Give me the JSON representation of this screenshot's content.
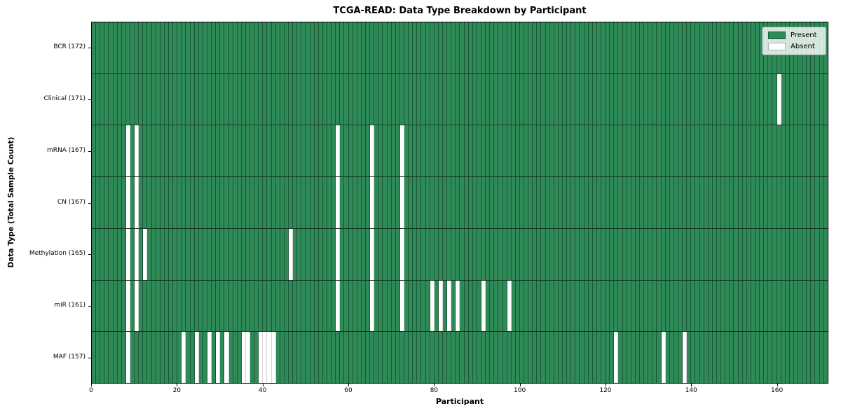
{
  "figure": {
    "title": "TCGA-READ: Data Type Breakdown by Participant",
    "xlabel": "Participant",
    "ylabel": "Data Type (Total Sample Count)"
  },
  "legend": {
    "items": [
      {
        "label": "Present",
        "color": "#2e8b57"
      },
      {
        "label": "Absent",
        "color": "#ffffff"
      }
    ]
  },
  "chart_data": {
    "type": "heatmap",
    "title": "TCGA-READ: Data Type Breakdown by Participant",
    "xlabel": "Participant",
    "ylabel": "Data Type (Total Sample Count)",
    "n_participants": 172,
    "x_ticks": [
      0,
      20,
      40,
      60,
      80,
      100,
      120,
      140,
      160
    ],
    "x_range": [
      0,
      172
    ],
    "grid": "cell-edges",
    "legend_position": "upper right",
    "colors": {
      "present": "#2e8b57",
      "absent": "#ffffff"
    },
    "cell_states": [
      "present",
      "absent"
    ],
    "rows": [
      {
        "label": "BCR (172)",
        "name": "BCR",
        "total_sample_count": 172,
        "absent_participants": []
      },
      {
        "label": "Clinical (171)",
        "name": "Clinical",
        "total_sample_count": 171,
        "absent_participants": [
          160
        ]
      },
      {
        "label": "mRNA (167)",
        "name": "mRNA",
        "total_sample_count": 167,
        "absent_participants": [
          8,
          10,
          57,
          65,
          72
        ]
      },
      {
        "label": "CN (167)",
        "name": "CN",
        "total_sample_count": 167,
        "absent_participants": [
          8,
          10,
          57,
          65,
          72
        ]
      },
      {
        "label": "Methylation (165)",
        "name": "Methylation",
        "total_sample_count": 165,
        "absent_participants": [
          8,
          10,
          12,
          46,
          57,
          65,
          72
        ]
      },
      {
        "label": "miR (161)",
        "name": "miR",
        "total_sample_count": 161,
        "absent_participants": [
          8,
          10,
          57,
          65,
          72,
          79,
          81,
          83,
          85,
          91,
          97
        ]
      },
      {
        "label": "MAF (157)",
        "name": "MAF",
        "total_sample_count": 157,
        "absent_participants": [
          8,
          21,
          24,
          27,
          29,
          31,
          35,
          36,
          39,
          40,
          41,
          42,
          122,
          133,
          138
        ]
      }
    ]
  }
}
